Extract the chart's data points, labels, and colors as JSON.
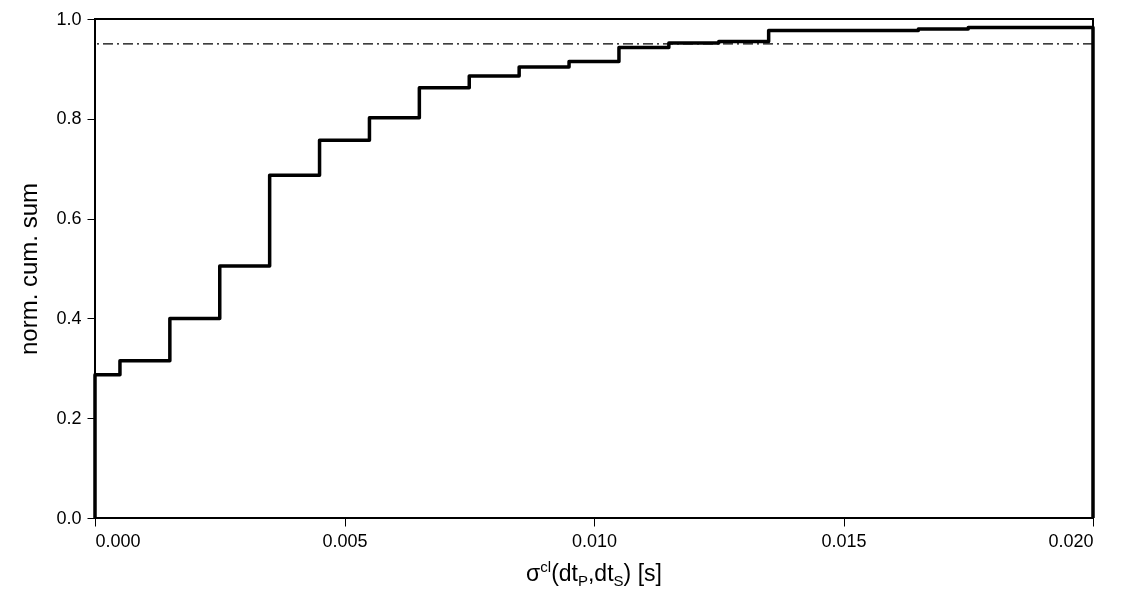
{
  "chart_data": {
    "type": "step",
    "xlabel": "σ$^{cl}$(dt$_{P}$,dt$_{S}$) [s]",
    "ylabel": "norm. cum. sum",
    "x": [
      0,
      0,
      0.0005,
      0.0015,
      0.0025,
      0.0035,
      0.0045,
      0.0055,
      0.0065,
      0.0075,
      0.0085,
      0.0095,
      0.0105,
      0.0115,
      0.0125,
      0.0135,
      0.0165,
      0.0175,
      0.02,
      0.02
    ],
    "series": [
      {
        "color": "#000000",
        "values": [
          0,
          0.287,
          0.315,
          0.4,
          0.505,
          0.687,
          0.757,
          0.802,
          0.862,
          0.886,
          0.904,
          0.915,
          0.943,
          0.952,
          0.955,
          0.977,
          0.98,
          0.983,
          0.983,
          0
        ]
      }
    ],
    "xlim": [
      0,
      0.02
    ],
    "xticks": [
      {
        "value": 0,
        "label": "0.000"
      },
      {
        "value": 0.005,
        "label": "0.005"
      },
      {
        "value": 0.01,
        "label": "0.010"
      },
      {
        "value": 0.015,
        "label": "0.015"
      },
      {
        "value": 0.02,
        "label": "0.020"
      }
    ],
    "ylim": [
      0,
      1
    ],
    "yticks": [
      {
        "value": 0,
        "label": "0.0"
      },
      {
        "value": 0.2,
        "label": "0.2"
      },
      {
        "value": 0.4,
        "label": "0.4"
      },
      {
        "value": 0.6,
        "label": "0.6"
      },
      {
        "value": 0.8,
        "label": "0.8"
      },
      {
        "value": 1,
        "label": "1.0"
      }
    ],
    "ref_lines": [
      {
        "axis": "y",
        "value": 0.95,
        "line_style": "dashdot",
        "color": "#000000"
      }
    ],
    "line_style": "solid",
    "grid": false
  }
}
